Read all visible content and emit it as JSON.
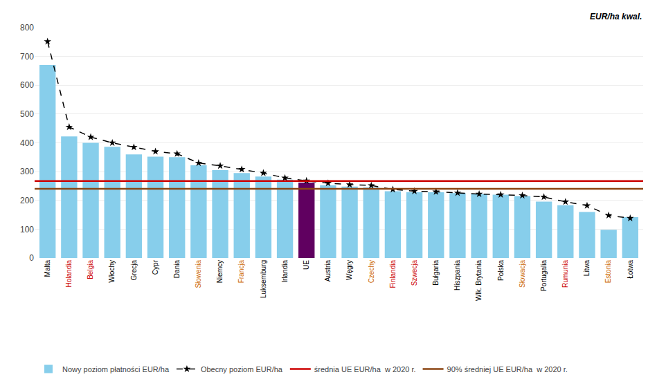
{
  "chart_data": {
    "type": "bar",
    "categories": [
      "Malta",
      "Holandia",
      "Belgia",
      "Włochy",
      "Grecja",
      "Cypr",
      "Dania",
      "Słowenia",
      "Niemcy",
      "Francja",
      "Luksemburg",
      "Irlandia",
      "UE",
      "Austria",
      "Węgry",
      "Czechy",
      "Finlandia",
      "Szwecja",
      "Bułgaria",
      "Hiszpania",
      "Wlk. Brytania",
      "Polska",
      "Słowacja",
      "Portugalia",
      "Rumunia",
      "Litwa",
      "Estonia",
      "Łotwa"
    ],
    "tick_label_colors": [
      "black",
      "#cc0000",
      "#cc0000",
      "black",
      "black",
      "black",
      "black",
      "#cc6600",
      "black",
      "#cc6600",
      "black",
      "black",
      "black",
      "black",
      "black",
      "#cc6600",
      "#cc0000",
      "#cc0000",
      "black",
      "black",
      "black",
      "black",
      "#cc6600",
      "black",
      "#cc0000",
      "black",
      "#cc6600",
      "black"
    ],
    "series": [
      {
        "name": "Nowy poziom płatności EUR/ha",
        "type": "bar",
        "colors": [
          "#87CEEB",
          "#87CEEB",
          "#87CEEB",
          "#87CEEB",
          "#87CEEB",
          "#87CEEB",
          "#87CEEB",
          "#87CEEB",
          "#87CEEB",
          "#87CEEB",
          "#87CEEB",
          "#87CEEB",
          "#600060",
          "#87CEEB",
          "#87CEEB",
          "#87CEEB",
          "#87CEEB",
          "#87CEEB",
          "#87CEEB",
          "#87CEEB",
          "#87CEEB",
          "#87CEEB",
          "#87CEEB",
          "#87CEEB",
          "#87CEEB",
          "#87CEEB",
          "#87CEEB",
          "#87CEEB"
        ],
        "values": [
          670,
          422,
          400,
          386,
          360,
          352,
          350,
          322,
          305,
          295,
          283,
          272,
          262,
          252,
          248,
          245,
          232,
          228,
          228,
          225,
          222,
          220,
          215,
          196,
          183,
          160,
          98,
          142
        ]
      },
      {
        "name": "Obecny poziom EUR/ha",
        "type": "line",
        "color": "#000000",
        "line_style": "dashed",
        "marker": "star",
        "values": [
          752,
          455,
          420,
          400,
          385,
          370,
          362,
          330,
          320,
          308,
          295,
          278,
          268,
          260,
          255,
          252,
          238,
          232,
          230,
          226,
          222,
          220,
          217,
          212,
          195,
          182,
          148,
          138
        ]
      },
      {
        "name": "średnia UE EUR/ha  w 2020 r.",
        "type": "hline",
        "color": "#cc0000",
        "value": 267
      },
      {
        "name": "90% średniej UE EUR/ha  w 2020 r.",
        "type": "hline",
        "color": "#8B4513",
        "value": 240
      }
    ],
    "annotations": [
      "EUR/ha kwal."
    ],
    "ylim": [
      0,
      800
    ],
    "yticks": [
      0,
      100,
      200,
      300,
      400,
      500,
      600,
      700,
      800
    ],
    "grid": true,
    "legend": "bottom"
  }
}
